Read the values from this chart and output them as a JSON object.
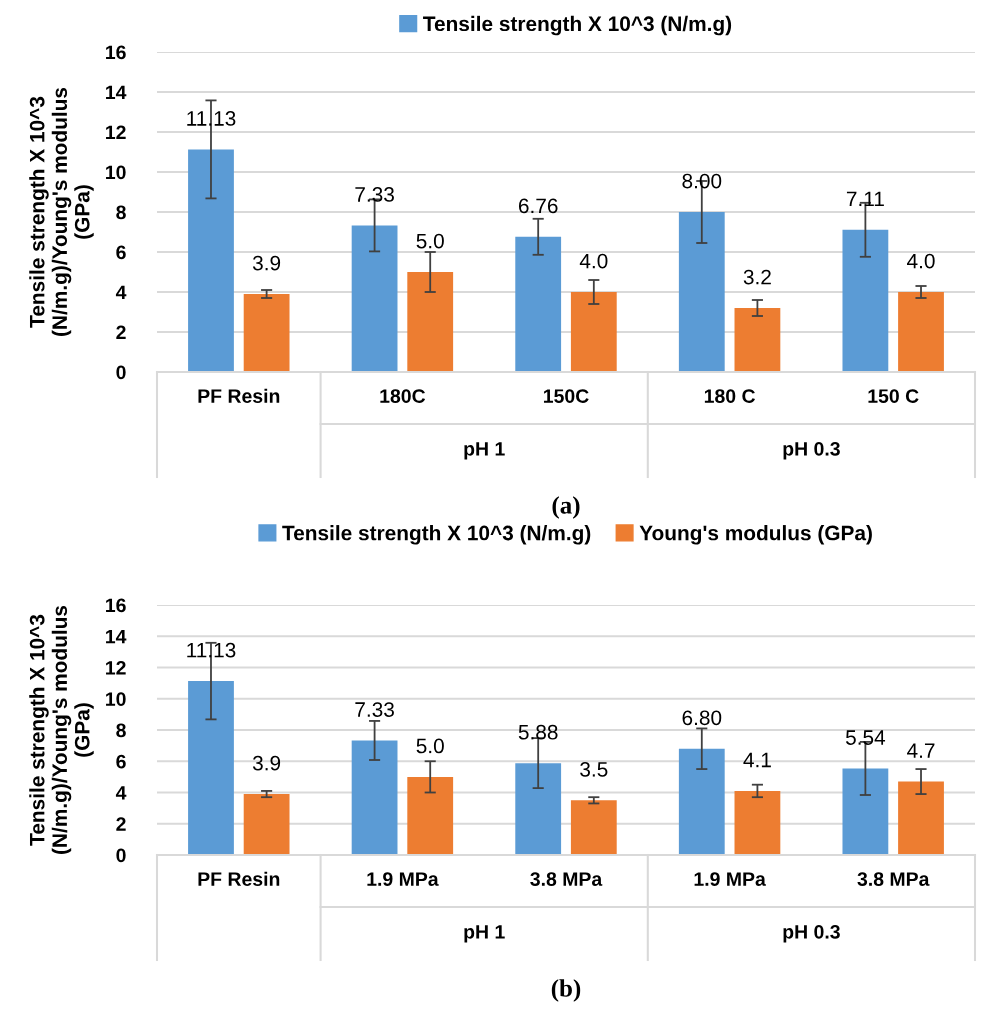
{
  "chart_data": [
    {
      "type": "bar",
      "ylabel": "Tensile strength X 10^3\n(N/m.g)/Young's modulus\n(GPa)",
      "categories": [
        "PF Resin",
        "180C",
        "150C",
        "180 C",
        "150 C"
      ],
      "ylim": [
        0,
        16
      ],
      "yticks": [
        0,
        2,
        4,
        6,
        8,
        10,
        12,
        14,
        16
      ],
      "grid": "y",
      "legend": "top",
      "series": [
        {
          "name": "Tensile strength X 10^3 (N/m.g)",
          "color": "#5b9bd5",
          "values": [
            11.13,
            7.33,
            6.76,
            8.0,
            7.11
          ],
          "errors": [
            2.45,
            1.3,
            0.9,
            1.55,
            1.35
          ],
          "value_labels": [
            "11.13",
            "7.33",
            "6.76",
            "8.00",
            "7.11"
          ]
        },
        {
          "color": "#ed7d31",
          "values": [
            3.9,
            5.0,
            4.0,
            3.2,
            4.0
          ],
          "errors": [
            0.2,
            1.0,
            0.6,
            0.4,
            0.3
          ],
          "value_labels": [
            "3.9",
            "5.0",
            "4.0",
            "3.2",
            "4.0"
          ]
        }
      ],
      "annotations": [
        "pH 1",
        "pH 0.3",
        "(a)"
      ]
    },
    {
      "type": "bar",
      "ylabel": "Tensile strength X 10^3\n(N/m.g)/Young's modulus\n(GPa)",
      "categories": [
        "PF Resin",
        "1.9 MPa",
        "3.8 MPa",
        "1.9 MPa",
        "3.8 MPa"
      ],
      "ylim": [
        0,
        16
      ],
      "yticks": [
        0,
        2,
        4,
        6,
        8,
        10,
        12,
        14,
        16
      ],
      "grid": "y",
      "legend": "top",
      "series": [
        {
          "name": "Tensile strength X 10^3 (N/m.g)",
          "color": "#5b9bd5",
          "values": [
            11.13,
            7.33,
            5.88,
            6.8,
            5.54
          ],
          "errors": [
            2.45,
            1.25,
            1.6,
            1.3,
            1.7
          ],
          "value_labels": [
            "11.13",
            "7.33",
            "5.88",
            "6.80",
            "5.54"
          ]
        },
        {
          "name": "Young's modulus (GPa)",
          "color": "#ed7d31",
          "values": [
            3.9,
            5.0,
            3.5,
            4.1,
            4.7
          ],
          "errors": [
            0.2,
            1.0,
            0.2,
            0.4,
            0.8
          ],
          "value_labels": [
            "3.9",
            "5.0",
            "3.5",
            "4.1",
            "4.7"
          ]
        }
      ],
      "annotations": [
        "pH 1",
        "pH 0.3",
        "(b)"
      ]
    }
  ]
}
